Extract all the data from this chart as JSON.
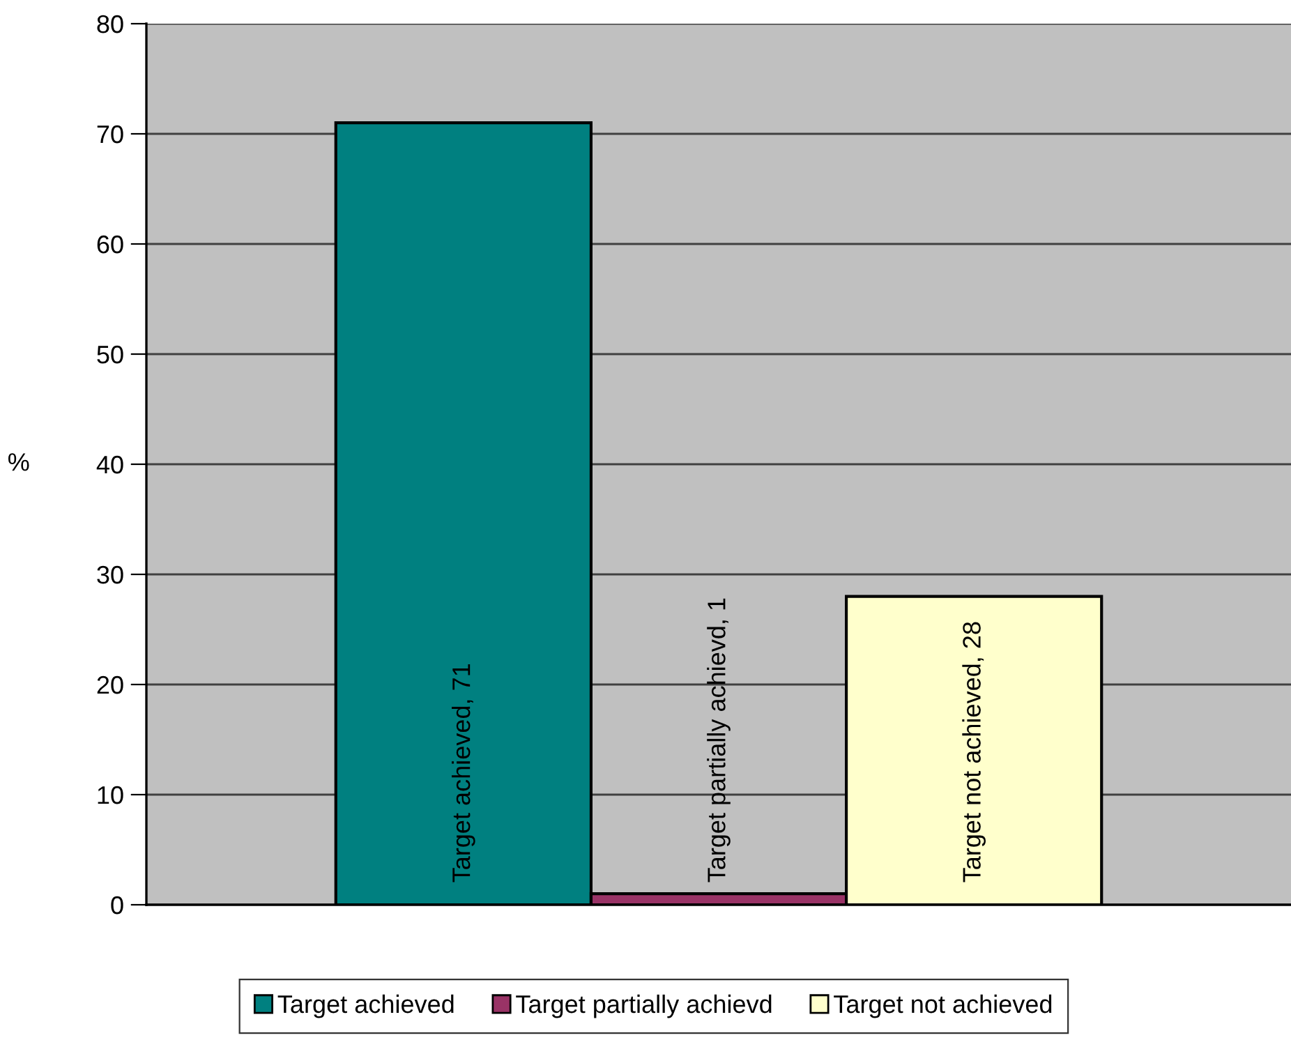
{
  "chart_data": {
    "type": "bar",
    "ylabel": "%",
    "categories": [
      null
    ],
    "series": [
      {
        "name": "Target achieved",
        "color": "#008080",
        "values": [
          71
        ],
        "value_labels": [
          "Target achieved, 71"
        ]
      },
      {
        "name": "Target partially achievd",
        "color": "#993366",
        "values": [
          1
        ],
        "value_labels": [
          "Target partially achievd, 1"
        ]
      },
      {
        "name": "Target not achieved",
        "color": "#ffffcc",
        "values": [
          28
        ],
        "value_labels": [
          "Target not achieved, 28"
        ]
      }
    ],
    "ylim": [
      0,
      80
    ],
    "yticks": [
      0,
      10,
      20,
      30,
      40,
      50,
      60,
      70,
      80
    ],
    "grid": "y",
    "legend": "bottom",
    "tick_labels": "y"
  }
}
